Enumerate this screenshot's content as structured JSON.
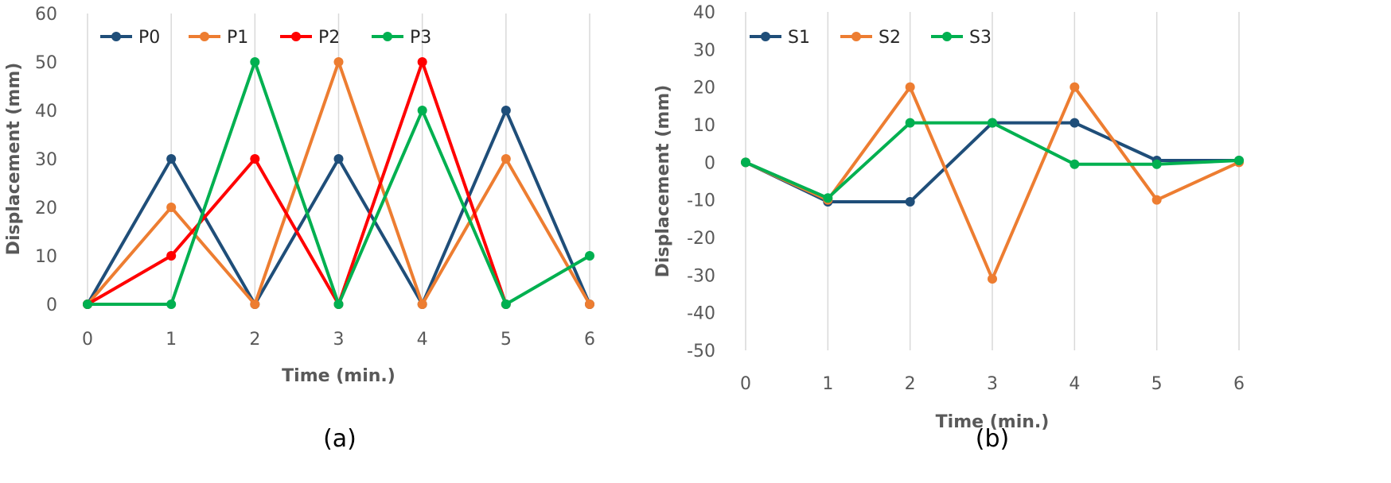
{
  "chart_data": [
    {
      "type": "line",
      "panel_label": "(a)",
      "xlabel": "Time (min.)",
      "ylabel": "Displacement (mm)",
      "x": [
        0,
        1,
        2,
        3,
        4,
        5,
        6
      ],
      "xlim": [
        0,
        6
      ],
      "ylim": [
        0,
        60
      ],
      "x_ticks": [
        0,
        1,
        2,
        3,
        4,
        5,
        6
      ],
      "y_ticks": [
        0,
        10,
        20,
        30,
        40,
        50,
        60
      ],
      "grid": "vertical",
      "legend_position": "top-left",
      "series": [
        {
          "name": "P0",
          "color": "#1f4e79",
          "values": [
            0,
            30,
            0,
            30,
            0,
            40,
            0
          ]
        },
        {
          "name": "P1",
          "color": "#ed7d31",
          "values": [
            0,
            20,
            0,
            50,
            0,
            30,
            0
          ]
        },
        {
          "name": "P2",
          "color": "#ff0000",
          "values": [
            0,
            10,
            30,
            0,
            50,
            0,
            null
          ]
        },
        {
          "name": "P3",
          "color": "#00b050",
          "values": [
            0,
            0,
            50,
            0,
            40,
            0,
            10
          ]
        }
      ]
    },
    {
      "type": "line",
      "panel_label": "(b)",
      "xlabel": "Time (min.)",
      "ylabel": "Displacement (mm)",
      "x": [
        0,
        1,
        2,
        3,
        4,
        5,
        6
      ],
      "xlim": [
        0,
        6
      ],
      "ylim": [
        -50,
        40
      ],
      "x_ticks": [
        0,
        1,
        2,
        3,
        4,
        5,
        6
      ],
      "y_ticks": [
        -50,
        -40,
        -30,
        -20,
        -10,
        0,
        10,
        20,
        30,
        40
      ],
      "grid": "vertical",
      "legend_position": "top-left",
      "series": [
        {
          "name": "S1",
          "color": "#1f4e79",
          "values": [
            0,
            -10.5,
            -10.5,
            10.5,
            10.5,
            0.5,
            0.5
          ]
        },
        {
          "name": "S2",
          "color": "#ed7d31",
          "values": [
            0,
            -10,
            20,
            -31,
            20,
            -10,
            0
          ]
        },
        {
          "name": "S3",
          "color": "#00b050",
          "values": [
            0,
            -9.5,
            10.5,
            10.5,
            -0.5,
            -0.5,
            0.5
          ]
        }
      ]
    }
  ]
}
